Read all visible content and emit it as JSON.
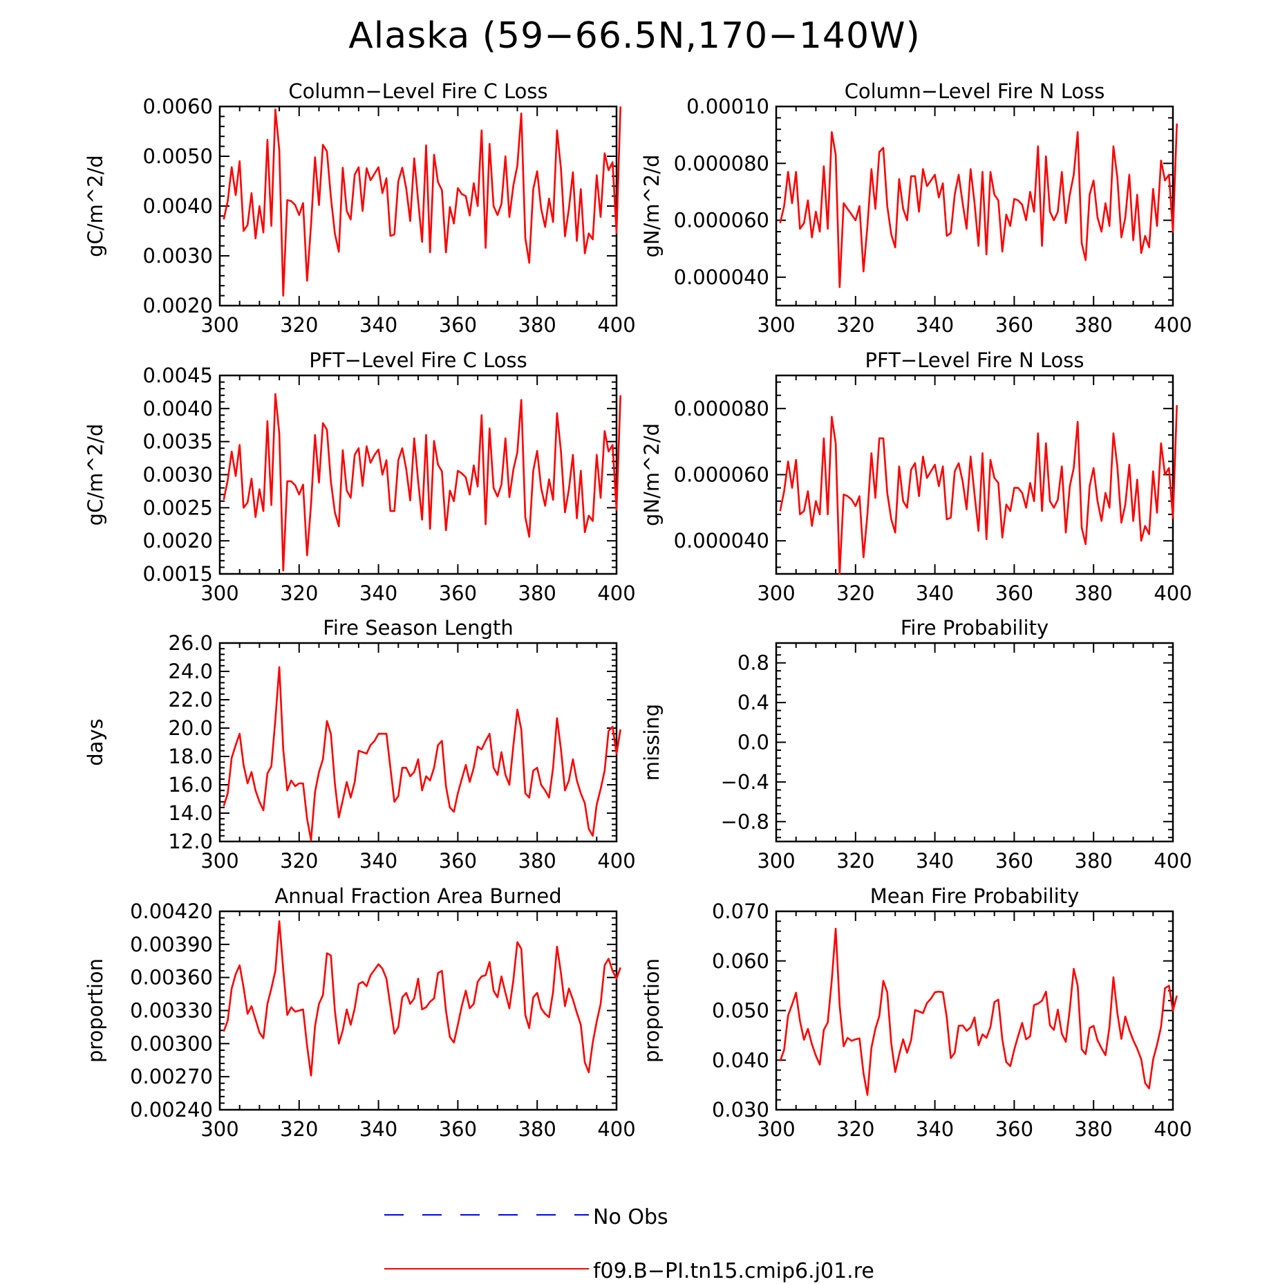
{
  "figure": {
    "title": "Alaska (59−66.5N,170−140W)",
    "colors": {
      "model": "#ff0000",
      "obs": "#0000ff",
      "axis": "#000000"
    }
  },
  "legend": {
    "placement": "bottom-center",
    "items": [
      {
        "label": "No Obs",
        "style": "dashed",
        "color": "#0000ff"
      },
      {
        "label": "f09.B−PI.tn15.cmip6.j01.re",
        "style": "solid",
        "color": "#ff0000"
      }
    ]
  },
  "chart_data": [
    {
      "type": "line",
      "title": "Column−Level Fire C Loss",
      "ylabel": "gC/m^2/d",
      "xlim": [
        300,
        400
      ],
      "ylim": [
        0.002,
        0.006
      ],
      "xticks": [
        "300",
        "320",
        "340",
        "360",
        "380",
        "400"
      ],
      "yticks": [
        "0.0020",
        "0.0030",
        "0.0040",
        "0.0050",
        "0.0060"
      ],
      "x_start": 301,
      "series": [
        {
          "name": "f09.B−PI.tn15.cmip6.j01.re",
          "color": "#ff0000",
          "values": [
            0.00373,
            0.0041,
            0.00478,
            0.00422,
            0.0049,
            0.0035,
            0.00362,
            0.00426,
            0.00335,
            0.004,
            0.00347,
            0.00533,
            0.0036,
            0.00594,
            0.00512,
            0.0022,
            0.00412,
            0.0041,
            0.00402,
            0.00382,
            0.00406,
            0.0025,
            0.00362,
            0.00498,
            0.00402,
            0.00523,
            0.0051,
            0.00418,
            0.00345,
            0.00308,
            0.00477,
            0.0039,
            0.00373,
            0.00463,
            0.00478,
            0.0039,
            0.00476,
            0.00452,
            0.00465,
            0.00478,
            0.00426,
            0.00456,
            0.0034,
            0.00343,
            0.0045,
            0.00477,
            0.00435,
            0.0037,
            0.00496,
            0.0041,
            0.00328,
            0.00522,
            0.00307,
            0.00503,
            0.00448,
            0.00432,
            0.00307,
            0.00398,
            0.00365,
            0.00436,
            0.00424,
            0.0042,
            0.00381,
            0.00446,
            0.004,
            0.00552,
            0.00316,
            0.00525,
            0.004,
            0.00382,
            0.00404,
            0.005,
            0.00378,
            0.00442,
            0.00481,
            0.00586,
            0.00336,
            0.00286,
            0.00434,
            0.0047,
            0.00395,
            0.00358,
            0.00415,
            0.00368,
            0.00552,
            0.00475,
            0.00339,
            0.00395,
            0.00468,
            0.0033,
            0.00434,
            0.00305,
            0.00345,
            0.00333,
            0.00462,
            0.00378,
            0.00506,
            0.00472,
            0.00488,
            0.00346,
            0.006
          ]
        }
      ]
    },
    {
      "type": "line",
      "title": "Column−Level Fire N Loss",
      "ylabel": "gN/m^2/d",
      "xlim": [
        300,
        400
      ],
      "ylim": [
        3e-05,
        0.0001
      ],
      "xticks": [
        "300",
        "320",
        "340",
        "360",
        "380",
        "400"
      ],
      "yticks": [
        "0.000040",
        "0.000060",
        "0.000080",
        "0.00010"
      ],
      "x_start": 301,
      "series": [
        {
          "name": "f09.B−PI.tn15.cmip6.j01.re",
          "color": "#ff0000",
          "values": [
            5.9e-05,
            6.5e-05,
            7.7e-05,
            6.6e-05,
            7.7e-05,
            5.7e-05,
            5.9e-05,
            6.7e-05,
            5.4e-05,
            6.3e-05,
            5.6e-05,
            7.9e-05,
            5.7e-05,
            9.1e-05,
            8.3e-05,
            3.65e-05,
            6.6e-05,
            6.4e-05,
            6.2e-05,
            6e-05,
            6.5e-05,
            4.2e-05,
            5.8e-05,
            7.8e-05,
            6.4e-05,
            8.4e-05,
            8.55e-05,
            6.5e-05,
            5.5e-05,
            5.05e-05,
            7.45e-05,
            6.4e-05,
            6e-05,
            7.55e-05,
            7.55e-05,
            6.3e-05,
            7.8e-05,
            7.2e-05,
            7.4e-05,
            7.6e-05,
            6.8e-05,
            7.3e-05,
            5.45e-05,
            5.55e-05,
            6.9e-05,
            7.6e-05,
            6.6e-05,
            5.7e-05,
            7.8e-05,
            6.6e-05,
            5.1e-05,
            7.7e-05,
            4.8e-05,
            7.7e-05,
            6.9e-05,
            6.7e-05,
            4.9e-05,
            6.2e-05,
            5.8e-05,
            6.75e-05,
            6.7e-05,
            6.55e-05,
            6e-05,
            7e-05,
            6.3e-05,
            8.6e-05,
            5.1e-05,
            8.25e-05,
            6.3e-05,
            6e-05,
            6.3e-05,
            7.7e-05,
            5.9e-05,
            6.9e-05,
            7.6e-05,
            9.1e-05,
            5.2e-05,
            4.6e-05,
            6.9e-05,
            7.4e-05,
            6.1e-05,
            5.6e-05,
            6.6e-05,
            5.8e-05,
            8.6e-05,
            7.5e-05,
            5.4e-05,
            6.1e-05,
            7.6e-05,
            5.3e-05,
            6.9e-05,
            4.85e-05,
            5.45e-05,
            5.05e-05,
            7.1e-05,
            5.8e-05,
            8.1e-05,
            7.4e-05,
            7.6e-05,
            5.6e-05,
            9.4e-05
          ]
        }
      ]
    },
    {
      "type": "line",
      "title": "PFT−Level Fire C Loss",
      "ylabel": "gC/m^2/d",
      "xlim": [
        300,
        400
      ],
      "ylim": [
        0.0015,
        0.0045
      ],
      "xticks": [
        "300",
        "320",
        "340",
        "360",
        "380",
        "400"
      ],
      "yticks": [
        "0.0015",
        "0.0020",
        "0.0025",
        "0.0030",
        "0.0035",
        "0.0040",
        "0.0045"
      ],
      "x_start": 301,
      "series": [
        {
          "name": "f09.B−PI.tn15.cmip6.j01.re",
          "color": "#ff0000",
          "values": [
            0.00262,
            0.00292,
            0.00335,
            0.00298,
            0.00345,
            0.0025,
            0.00258,
            0.00294,
            0.00236,
            0.00278,
            0.00245,
            0.00381,
            0.00254,
            0.00422,
            0.00362,
            0.00155,
            0.0029,
            0.0029,
            0.00284,
            0.0027,
            0.00285,
            0.00178,
            0.00255,
            0.0036,
            0.00288,
            0.00378,
            0.00368,
            0.0029,
            0.00243,
            0.00222,
            0.00337,
            0.00276,
            0.00265,
            0.0033,
            0.0034,
            0.00283,
            0.00343,
            0.00318,
            0.0033,
            0.00338,
            0.003,
            0.00322,
            0.00245,
            0.00245,
            0.00322,
            0.0034,
            0.00308,
            0.00261,
            0.00355,
            0.0029,
            0.00232,
            0.0036,
            0.00218,
            0.00351,
            0.00315,
            0.00305,
            0.00216,
            0.00276,
            0.0026,
            0.00306,
            0.00302,
            0.00296,
            0.0027,
            0.00314,
            0.00282,
            0.0039,
            0.00225,
            0.0037,
            0.0028,
            0.00267,
            0.00285,
            0.00355,
            0.00266,
            0.00308,
            0.00334,
            0.00413,
            0.00236,
            0.00206,
            0.00306,
            0.00336,
            0.0028,
            0.00253,
            0.00293,
            0.00262,
            0.00393,
            0.00335,
            0.00243,
            0.00278,
            0.0033,
            0.00234,
            0.00306,
            0.00213,
            0.00238,
            0.0023,
            0.0033,
            0.00265,
            0.00366,
            0.00335,
            0.00345,
            0.00247,
            0.0042
          ]
        }
      ]
    },
    {
      "type": "line",
      "title": "PFT−Level Fire N Loss",
      "ylabel": "gN/m^2/d",
      "xlim": [
        300,
        400
      ],
      "ylim": [
        3e-05,
        9e-05
      ],
      "xticks": [
        "300",
        "320",
        "340",
        "360",
        "380",
        "400"
      ],
      "yticks": [
        "0.000040",
        "0.000060",
        "0.000080"
      ],
      "x_start": 301,
      "series": [
        {
          "name": "f09.B−PI.tn15.cmip6.j01.re",
          "color": "#ff0000",
          "values": [
            4.9e-05,
            5.5e-05,
            6.4e-05,
            5.6e-05,
            6.45e-05,
            4.8e-05,
            4.9e-05,
            5.5e-05,
            4.45e-05,
            5.2e-05,
            4.8e-05,
            7.1e-05,
            4.8e-05,
            7.75e-05,
            6.95e-05,
            3e-05,
            5.4e-05,
            5.35e-05,
            5.25e-05,
            5.05e-05,
            5.35e-05,
            3.5e-05,
            4.8e-05,
            6.65e-05,
            5.3e-05,
            7.1e-05,
            7.1e-05,
            5.45e-05,
            4.65e-05,
            4.25e-05,
            6.25e-05,
            5.2e-05,
            5e-05,
            6.15e-05,
            6.35e-05,
            5.35e-05,
            6.55e-05,
            5.9e-05,
            6.1e-05,
            6.3e-05,
            5.65e-05,
            6.25e-05,
            4.65e-05,
            4.7e-05,
            6.1e-05,
            6.35e-05,
            5.8e-05,
            4.95e-05,
            6.55e-05,
            5.4e-05,
            4.3e-05,
            6.65e-05,
            4.05e-05,
            6.45e-05,
            5.9e-05,
            5.75e-05,
            4.1e-05,
            5.1e-05,
            4.9e-05,
            5.6e-05,
            5.6e-05,
            5.45e-05,
            5e-05,
            5.75e-05,
            5.2e-05,
            7.25e-05,
            4.9e-05,
            6.95e-05,
            5.2e-05,
            5e-05,
            5.25e-05,
            6.25e-05,
            4.25e-05,
            5.65e-05,
            6.2e-05,
            7.6e-05,
            4.4e-05,
            3.9e-05,
            5.65e-05,
            6.2e-05,
            5.2e-05,
            4.6e-05,
            5.45e-05,
            5e-05,
            7.25e-05,
            6.25e-05,
            4.55e-05,
            5.1e-05,
            6.3e-05,
            4.6e-05,
            5.85e-05,
            4e-05,
            4.45e-05,
            4.2e-05,
            6.1e-05,
            4.85e-05,
            6.95e-05,
            6e-05,
            6.2e-05,
            4.7e-05,
            8.1e-05
          ]
        }
      ]
    },
    {
      "type": "line",
      "title": "Fire Season Length",
      "ylabel": "days",
      "xlim": [
        300,
        400
      ],
      "ylim": [
        12.0,
        26.0
      ],
      "xticks": [
        "300",
        "320",
        "340",
        "360",
        "380",
        "400"
      ],
      "yticks": [
        "12.0",
        "14.0",
        "16.0",
        "18.0",
        "20.0",
        "22.0",
        "24.0",
        "26.0"
      ],
      "x_start": 301,
      "series": [
        {
          "name": "f09.B−PI.tn15.cmip6.j01.re",
          "color": "#ff0000",
          "values": [
            14.5,
            15.4,
            17.9,
            18.8,
            19.6,
            17.4,
            16.1,
            16.9,
            15.6,
            14.8,
            14.2,
            16.8,
            17.3,
            20.6,
            24.3,
            18.5,
            15.6,
            16.3,
            15.9,
            16.1,
            16.1,
            13.6,
            12.1,
            15.5,
            16.9,
            17.8,
            20.5,
            19.6,
            16.1,
            13.7,
            14.9,
            16.2,
            15.1,
            16.2,
            18.4,
            18.3,
            18.2,
            18.8,
            19.1,
            19.6,
            19.6,
            19.6,
            17.2,
            14.8,
            15.2,
            17.2,
            17.2,
            16.6,
            16.9,
            17.8,
            15.6,
            16.6,
            16.3,
            17.2,
            18.8,
            19.1,
            15.9,
            14.4,
            14.1,
            15.4,
            16.4,
            17.4,
            16.2,
            17.2,
            18.7,
            18.5,
            19.1,
            19.6,
            17.2,
            16.7,
            18.3,
            16.7,
            16.0,
            18.8,
            21.3,
            19.9,
            15.4,
            15.1,
            17.0,
            17.2,
            16.0,
            15.6,
            15.1,
            17.2,
            20.7,
            18.5,
            15.6,
            16.3,
            17.8,
            16.3,
            15.4,
            14.7,
            12.9,
            12.4,
            14.6,
            15.7,
            17.0,
            19.8,
            20.1,
            18.2,
            19.9
          ]
        }
      ]
    },
    {
      "type": "line",
      "title": "Fire Probability",
      "ylabel": "missing",
      "xlim": [
        300,
        400
      ],
      "ylim": [
        -1.0,
        1.0
      ],
      "xticks": [
        "300",
        "320",
        "340",
        "360",
        "380",
        "400"
      ],
      "yticks": [
        "−0.8",
        "−0.4",
        "0.0",
        "0.4",
        "0.8"
      ],
      "x_start": 301,
      "series": []
    },
    {
      "type": "line",
      "title": "Annual Fraction Area Burned",
      "ylabel": "proportion",
      "xlim": [
        300,
        400
      ],
      "ylim": [
        0.0024,
        0.0042
      ],
      "xticks": [
        "300",
        "320",
        "340",
        "360",
        "380",
        "400"
      ],
      "yticks": [
        "0.00240",
        "0.00270",
        "0.00300",
        "0.00330",
        "0.00360",
        "0.00390",
        "0.00420"
      ],
      "x_start": 301,
      "series": [
        {
          "name": "f09.B−PI.tn15.cmip6.j01.re",
          "color": "#ff0000",
          "values": [
            0.00311,
            0.00321,
            0.0035,
            0.00363,
            0.00371,
            0.00351,
            0.00327,
            0.00334,
            0.00322,
            0.0031,
            0.00305,
            0.00336,
            0.0035,
            0.00366,
            0.00411,
            0.00367,
            0.00326,
            0.00333,
            0.00329,
            0.0033,
            0.00331,
            0.00298,
            0.00271,
            0.00316,
            0.00336,
            0.00344,
            0.00382,
            0.0038,
            0.0033,
            0.003,
            0.00312,
            0.00331,
            0.00317,
            0.00332,
            0.00354,
            0.00356,
            0.00352,
            0.00362,
            0.00367,
            0.00372,
            0.00368,
            0.00359,
            0.00334,
            0.00309,
            0.00315,
            0.00342,
            0.00346,
            0.00336,
            0.00341,
            0.00359,
            0.00331,
            0.00333,
            0.00338,
            0.00341,
            0.00364,
            0.00366,
            0.0033,
            0.00306,
            0.00301,
            0.00317,
            0.00334,
            0.00348,
            0.00332,
            0.00336,
            0.00356,
            0.00361,
            0.00362,
            0.00374,
            0.00348,
            0.00342,
            0.00361,
            0.00346,
            0.00332,
            0.00358,
            0.00392,
            0.00386,
            0.00326,
            0.00314,
            0.00342,
            0.00346,
            0.00332,
            0.00327,
            0.00324,
            0.00347,
            0.00388,
            0.00364,
            0.00334,
            0.0035,
            0.0034,
            0.00328,
            0.00317,
            0.00283,
            0.00274,
            0.00301,
            0.0032,
            0.00336,
            0.00371,
            0.00377,
            0.00366,
            0.00359,
            0.00369
          ]
        }
      ]
    },
    {
      "type": "line",
      "title": "Mean Fire Probability",
      "ylabel": "proportion",
      "xlim": [
        300,
        400
      ],
      "ylim": [
        0.03,
        0.07
      ],
      "xticks": [
        "300",
        "320",
        "340",
        "360",
        "380",
        "400"
      ],
      "yticks": [
        "0.030",
        "0.040",
        "0.050",
        "0.060",
        "0.070"
      ],
      "x_start": 301,
      "series": [
        {
          "name": "f09.B−PI.tn15.cmip6.j01.re",
          "color": "#ff0000",
          "values": [
            0.0398,
            0.0421,
            0.049,
            0.0512,
            0.0536,
            0.0479,
            0.0441,
            0.0463,
            0.0432,
            0.0409,
            0.0391,
            0.0461,
            0.0476,
            0.0561,
            0.0665,
            0.051,
            0.0428,
            0.0445,
            0.0439,
            0.0442,
            0.0444,
            0.0374,
            0.033,
            0.0425,
            0.0463,
            0.0489,
            0.056,
            0.0537,
            0.0434,
            0.0376,
            0.0411,
            0.0442,
            0.0415,
            0.044,
            0.0501,
            0.0498,
            0.0495,
            0.0515,
            0.0524,
            0.0537,
            0.0538,
            0.0537,
            0.0486,
            0.0404,
            0.0415,
            0.0469,
            0.047,
            0.0459,
            0.0466,
            0.0486,
            0.043,
            0.0452,
            0.0445,
            0.0467,
            0.0517,
            0.0522,
            0.0441,
            0.0396,
            0.0388,
            0.0421,
            0.0449,
            0.0475,
            0.0442,
            0.0448,
            0.0511,
            0.0514,
            0.052,
            0.0538,
            0.047,
            0.0461,
            0.0502,
            0.0453,
            0.0437,
            0.0503,
            0.0584,
            0.055,
            0.0422,
            0.0412,
            0.0465,
            0.0469,
            0.044,
            0.0424,
            0.041,
            0.0467,
            0.0567,
            0.0495,
            0.0443,
            0.0488,
            0.0461,
            0.044,
            0.0423,
            0.0402,
            0.0354,
            0.0343,
            0.0401,
            0.0431,
            0.0467,
            0.0545,
            0.055,
            0.05,
            0.053
          ]
        }
      ]
    }
  ]
}
